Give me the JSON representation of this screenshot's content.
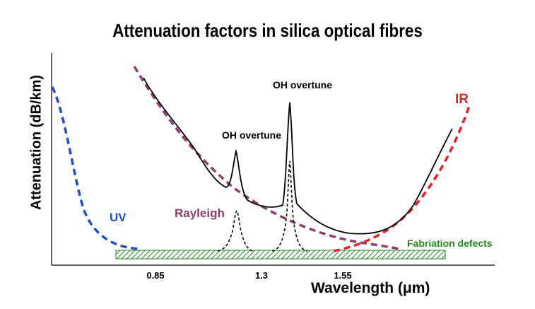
{
  "chart_data": {
    "type": "line",
    "title": "Attenuation factors in silica optical fibres",
    "xlabel": "Wavelength (μm)",
    "ylabel": "Attenuation (dB/km)",
    "x_ticks": [
      {
        "value": 0.85,
        "label": "0.85"
      },
      {
        "value": 1.3,
        "label": "1.3"
      },
      {
        "value": 1.55,
        "label": "1.55"
      }
    ],
    "grid": false,
    "y_ticks": false,
    "legend": "none",
    "series": [
      {
        "name": "UV",
        "style": "dashed",
        "color": "#1f4fc7"
      },
      {
        "name": "Rayleigh",
        "style": "dashed",
        "color": "#8e3b6e"
      },
      {
        "name": "IR",
        "style": "dashed",
        "color": "#e8202a"
      },
      {
        "name": "",
        "style": "solid",
        "color": "#000000"
      },
      {
        "name": "",
        "style": "dashed",
        "color": "#000000"
      }
    ],
    "annotations": [
      {
        "text": "OH overtune",
        "color": "#000000"
      },
      {
        "text": "OH overtune",
        "color": "#000000"
      },
      {
        "text": "UV",
        "color": "#1f4fc7"
      },
      {
        "text": "Rayleigh",
        "color": "#8e3b6e"
      },
      {
        "text": "IR",
        "color": "#e8202a"
      },
      {
        "text": "Fabriation defects",
        "color": "#1e8a1e"
      }
    ],
    "colors": {
      "uv": "#1f4fc7",
      "rayleigh": "#8e3b6e",
      "ir": "#e8202a",
      "total": "#000000",
      "defects_fill": "#1e8a1e"
    }
  }
}
